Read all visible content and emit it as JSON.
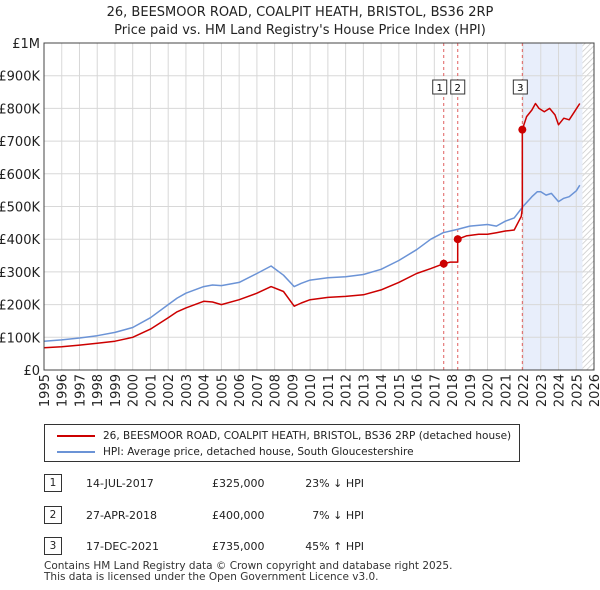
{
  "chart_data": {
    "type": "line",
    "title": "26, BEESMOOR ROAD, COALPIT HEATH, BRISTOL, BS36 2RP",
    "subtitle": "Price paid vs. HM Land Registry's House Price Index (HPI)",
    "xlim": [
      1995,
      2026
    ],
    "ylim": [
      0,
      1000000
    ],
    "x_ticks": [
      "1995",
      "1996",
      "1997",
      "1998",
      "1999",
      "2000",
      "2001",
      "2002",
      "2003",
      "2004",
      "2005",
      "2006",
      "2007",
      "2008",
      "2009",
      "2010",
      "2011",
      "2012",
      "2013",
      "2014",
      "2015",
      "2016",
      "2017",
      "2018",
      "2019",
      "2020",
      "2021",
      "2022",
      "2023",
      "2024",
      "2025",
      "2026"
    ],
    "y_ticks": [
      {
        "value": 0,
        "label": "£0"
      },
      {
        "value": 100000,
        "label": "£100K"
      },
      {
        "value": 200000,
        "label": "£200K"
      },
      {
        "value": 300000,
        "label": "£300K"
      },
      {
        "value": 400000,
        "label": "£400K"
      },
      {
        "value": 500000,
        "label": "£500K"
      },
      {
        "value": 600000,
        "label": "£600K"
      },
      {
        "value": 700000,
        "label": "£700K"
      },
      {
        "value": 800000,
        "label": "£800K"
      },
      {
        "value": 900000,
        "label": "£900K"
      },
      {
        "value": 1000000,
        "label": "£1M"
      }
    ],
    "grid": true,
    "shaded_span": {
      "from": 2021.96,
      "to": 2025.35
    },
    "hatched_from": 2025.35,
    "series": [
      {
        "name": "26, BEESMOOR ROAD, COALPIT HEATH, BRISTOL, BS36 2RP (detached house)",
        "color": "#cc0000",
        "x": [
          1995.0,
          1996.0,
          1997.0,
          1998.0,
          1999.0,
          2000.0,
          2001.0,
          2002.0,
          2002.5,
          2003.0,
          2004.0,
          2004.5,
          2005.0,
          2006.0,
          2007.0,
          2007.8,
          2008.5,
          2009.1,
          2009.5,
          2010.0,
          2011.0,
          2012.0,
          2013.0,
          2014.0,
          2015.0,
          2016.0,
          2016.8,
          2017.53,
          2017.53,
          2017.9,
          2018.32,
          2018.32,
          2018.8,
          2019.5,
          2020.0,
          2020.5,
          2021.0,
          2021.5,
          2021.9,
          2021.96,
          2021.96,
          2022.2,
          2022.5,
          2022.7,
          2022.9,
          2023.2,
          2023.5,
          2023.8,
          2024.0,
          2024.3,
          2024.6,
          2024.9,
          2025.2
        ],
        "values": [
          68000,
          71000,
          76000,
          82000,
          88000,
          100000,
          125000,
          160000,
          178000,
          190000,
          210000,
          208000,
          200000,
          215000,
          235000,
          255000,
          240000,
          195000,
          205000,
          215000,
          222000,
          225000,
          230000,
          245000,
          268000,
          295000,
          310000,
          325000,
          325000,
          330000,
          330000,
          400000,
          410000,
          415000,
          415000,
          420000,
          425000,
          428000,
          470000,
          495000,
          735000,
          775000,
          795000,
          815000,
          800000,
          790000,
          800000,
          780000,
          750000,
          770000,
          765000,
          790000,
          815000
        ]
      },
      {
        "name": "HPI: Average price, detached house, South Gloucestershire",
        "color": "#6b93d6",
        "x": [
          1995.0,
          1996.0,
          1997.0,
          1998.0,
          1999.0,
          2000.0,
          2001.0,
          2002.0,
          2002.5,
          2003.0,
          2004.0,
          2004.5,
          2005.0,
          2006.0,
          2007.0,
          2007.8,
          2008.5,
          2009.1,
          2009.5,
          2010.0,
          2011.0,
          2012.0,
          2013.0,
          2014.0,
          2015.0,
          2016.0,
          2016.8,
          2017.5,
          2018.3,
          2019.0,
          2020.0,
          2020.5,
          2021.0,
          2021.5,
          2022.0,
          2022.5,
          2022.8,
          2023.0,
          2023.3,
          2023.6,
          2024.0,
          2024.3,
          2024.6,
          2025.0,
          2025.2
        ],
        "values": [
          88000,
          92000,
          98000,
          105000,
          115000,
          130000,
          160000,
          200000,
          220000,
          235000,
          255000,
          260000,
          258000,
          268000,
          295000,
          318000,
          290000,
          255000,
          265000,
          275000,
          282000,
          285000,
          292000,
          308000,
          335000,
          368000,
          400000,
          420000,
          430000,
          440000,
          445000,
          440000,
          455000,
          465000,
          500000,
          530000,
          545000,
          545000,
          535000,
          540000,
          515000,
          525000,
          530000,
          548000,
          565000
        ]
      }
    ],
    "transactions": [
      {
        "num": "1",
        "date": "14-JUL-2017",
        "price": "£325,000",
        "hpi": "23% ↓ HPI",
        "x": 2017.53,
        "value": 325000
      },
      {
        "num": "2",
        "date": "27-APR-2018",
        "price": "£400,000",
        "hpi": "7% ↓ HPI",
        "x": 2018.32,
        "value": 400000
      },
      {
        "num": "3",
        "date": "17-DEC-2021",
        "price": "£735,000",
        "hpi": "45% ↑ HPI",
        "x": 2021.96,
        "value": 735000
      }
    ]
  },
  "legend": {
    "property_label": "26, BEESMOOR ROAD, COALPIT HEATH, BRISTOL, BS36 2RP (detached house)",
    "hpi_label": "HPI: Average price, detached house, South Gloucestershire",
    "property_color": "#cc0000",
    "hpi_color": "#6b93d6"
  },
  "footer": {
    "line1": "Contains HM Land Registry data © Crown copyright and database right 2025.",
    "line2": "This data is licensed under the Open Government Licence v3.0."
  }
}
